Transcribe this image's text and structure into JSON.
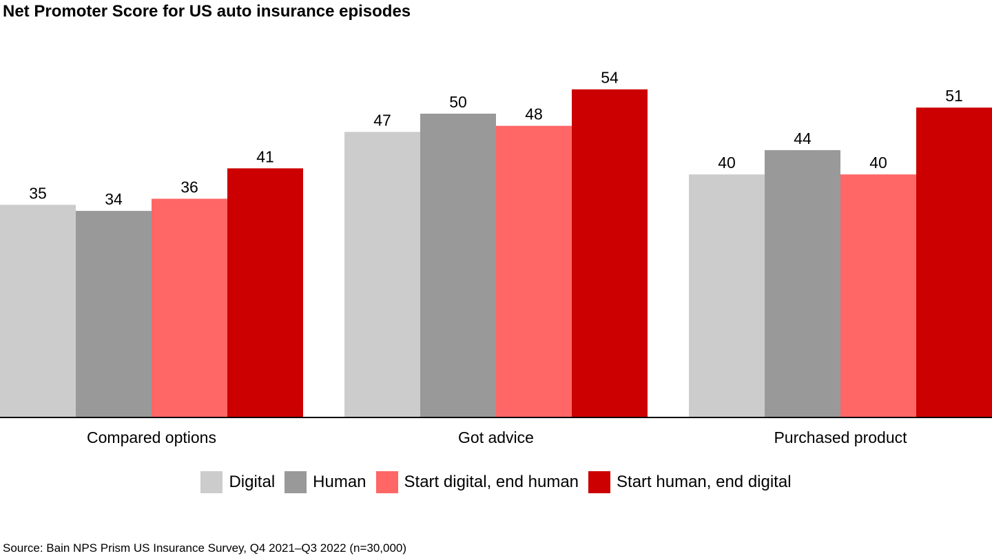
{
  "chart_data": {
    "type": "bar",
    "title": "Net Promoter Score for US auto insurance episodes",
    "xlabel": "",
    "ylabel": "",
    "categories": [
      "Compared options",
      "Got advice",
      "Purchased product"
    ],
    "series": [
      {
        "name": "Digital",
        "values": [
          35,
          47,
          40
        ],
        "color": "#cccccc"
      },
      {
        "name": "Human",
        "values": [
          34,
          50,
          44
        ],
        "color": "#999999"
      },
      {
        "name": "Start digital, end human",
        "values": [
          36,
          48,
          40
        ],
        "color": "#ff6666"
      },
      {
        "name": "Start human, end digital",
        "values": [
          41,
          54,
          51
        ],
        "color": "#cc0000"
      }
    ],
    "ylim": [
      0,
      54
    ],
    "grid": false,
    "legend_position": "bottom",
    "data_labels": true
  },
  "source": "Source: Bain NPS Prism US Insurance Survey, Q4 2021–Q3 2022 (n=30,000)"
}
